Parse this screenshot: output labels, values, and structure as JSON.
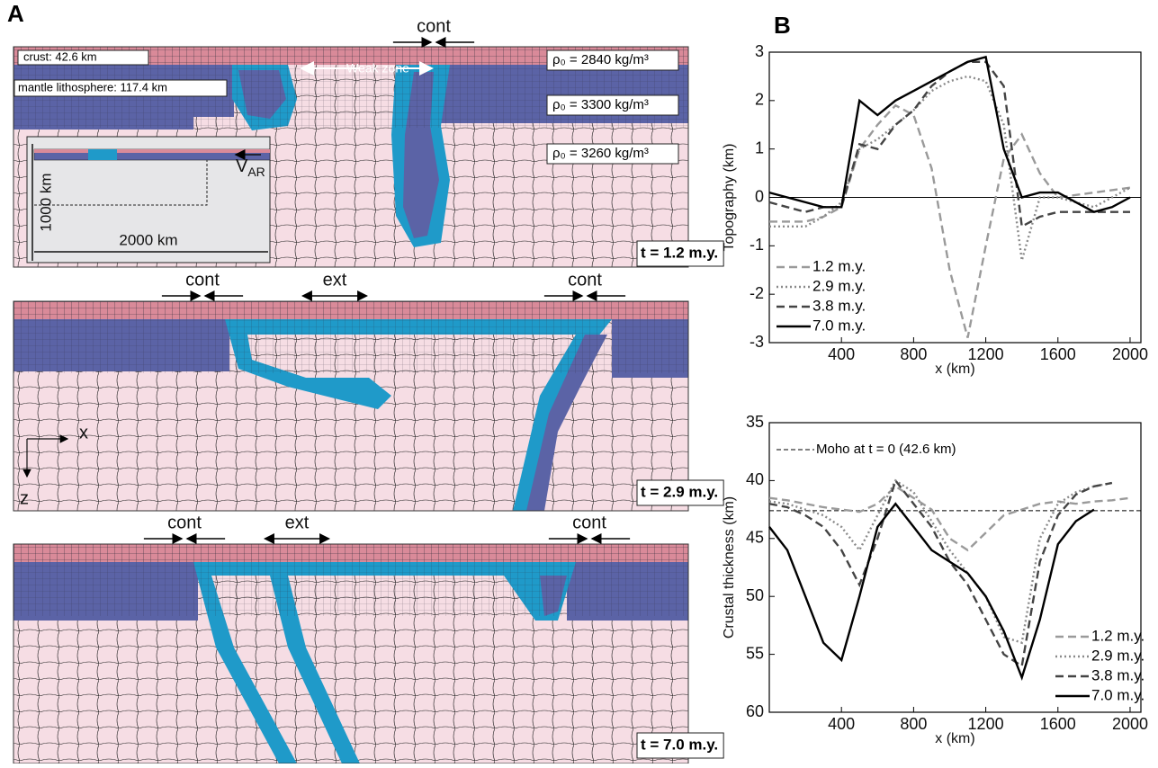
{
  "panel_a": {
    "label": "A",
    "snapshots": [
      {
        "time": "t = 1.2 m.y.",
        "arrows": [
          "cont"
        ],
        "weak_zone": "Weak zone",
        "crust": "crust:   42.6 km",
        "lithosphere": "mantle lithosphere: 117.4 km",
        "densities": [
          "ρ₀ = 2840 kg/m³",
          "ρ₀ = 3300 kg/m³",
          "ρ₀ = 3260 kg/m³"
        ],
        "inset": {
          "depth": "1000 km",
          "width": "2000 km",
          "velocity": "V",
          "velocity_sub": "AR"
        }
      },
      {
        "time": "t = 2.9 m.y.",
        "arrows": [
          "cont",
          "ext",
          "cont"
        ],
        "axes": [
          "x",
          "z"
        ]
      },
      {
        "time": "t = 7.0 m.y.",
        "arrows": [
          "cont",
          "ext",
          "cont"
        ]
      }
    ]
  },
  "panel_b_label": "B",
  "chart_data": [
    {
      "type": "line",
      "y_label": "Topography (km)",
      "x_label": "x (km)",
      "x": [
        0,
        100,
        200,
        300,
        400,
        500,
        600,
        700,
        800,
        900,
        1000,
        1100,
        1200,
        1300,
        1400,
        1500,
        1600,
        1700,
        1800,
        1900,
        2000
      ],
      "xlim": [
        0,
        2060
      ],
      "xticks": [
        400,
        800,
        1200,
        1600,
        2000
      ],
      "ylim": [
        -3,
        3
      ],
      "yticks": [
        -3,
        -2,
        -1,
        0,
        1,
        2,
        3
      ],
      "hline": 0,
      "legend": "lower left",
      "series": [
        {
          "name": "1.2 m.y.",
          "color": "#9a9a9a",
          "dash": "dashed",
          "values": [
            -0.5,
            -0.5,
            -0.5,
            -0.4,
            -0.2,
            1.0,
            1.5,
            1.9,
            1.7,
            0.6,
            -1.5,
            -2.9,
            -1.0,
            0.8,
            1.3,
            0.5,
            0.0,
            0.05,
            0.1,
            0.15,
            0.2
          ]
        },
        {
          "name": "2.9 m.y.",
          "color": "#8a8a8a",
          "dash": "dotted",
          "values": [
            -0.6,
            -0.6,
            -0.6,
            -0.4,
            -0.1,
            1.0,
            1.2,
            1.5,
            1.8,
            2.2,
            2.4,
            2.5,
            2.4,
            1.5,
            -1.3,
            0.0,
            0.0,
            -0.1,
            -0.2,
            0.0,
            0.2
          ]
        },
        {
          "name": "3.8 m.y.",
          "color": "#444444",
          "dash": "dashed",
          "values": [
            -0.1,
            -0.2,
            -0.3,
            -0.2,
            -0.2,
            1.1,
            1.0,
            1.5,
            1.8,
            2.3,
            2.6,
            2.8,
            2.8,
            2.3,
            -0.6,
            -0.4,
            -0.3,
            -0.3,
            -0.3,
            -0.3,
            -0.3
          ]
        },
        {
          "name": "7.0 m.y.",
          "color": "#000000",
          "dash": "solid",
          "values": [
            0.1,
            0.0,
            -0.1,
            -0.2,
            -0.2,
            2.0,
            1.7,
            2.0,
            2.2,
            2.4,
            2.6,
            2.8,
            2.9,
            1.0,
            0.0,
            0.1,
            0.1,
            -0.1,
            -0.3,
            -0.2,
            0.0
          ]
        }
      ]
    },
    {
      "type": "line",
      "y_label": "Crustal thickness (km)",
      "x_label": "x (km)",
      "x": [
        0,
        100,
        200,
        300,
        400,
        500,
        600,
        700,
        800,
        900,
        1000,
        1100,
        1200,
        1300,
        1400,
        1500,
        1600,
        1700,
        1800,
        1900,
        2000
      ],
      "xlim": [
        0,
        2060
      ],
      "xticks": [
        400,
        800,
        1200,
        1600,
        2000
      ],
      "ylim": [
        60,
        35
      ],
      "yticks": [
        35,
        40,
        45,
        50,
        55,
        60
      ],
      "reference_line": {
        "value": 42.6,
        "label": "Moho at t = 0 (42.6 km)"
      },
      "legend": "lower right",
      "series": [
        {
          "name": "1.2 m.y.",
          "color": "#9a9a9a",
          "dash": "dashed",
          "values": [
            41.5,
            41.7,
            42,
            42.3,
            42.5,
            42.7,
            42.0,
            40.5,
            41.5,
            42.5,
            45,
            46,
            44.5,
            43,
            42.5,
            42.0,
            41.8,
            42,
            41.8,
            41.7,
            41.5
          ]
        },
        {
          "name": "2.9 m.y.",
          "color": "#8a8a8a",
          "dash": "dotted",
          "values": [
            41.8,
            42,
            42.5,
            43,
            44,
            46,
            43,
            40,
            41,
            43.5,
            46,
            48,
            50,
            53.5,
            54,
            45,
            42,
            41,
            40.5,
            40.2,
            null
          ]
        },
        {
          "name": "3.8 m.y.",
          "color": "#444444",
          "dash": "dashed",
          "values": [
            42,
            42.3,
            43,
            44,
            46,
            49,
            45,
            40,
            42,
            44,
            47,
            49,
            52,
            55,
            56,
            47,
            43,
            41.2,
            40.5,
            40.2,
            null
          ]
        },
        {
          "name": "7.0 m.y.",
          "color": "#000000",
          "dash": "solid",
          "values": [
            44,
            46,
            50,
            54,
            55.5,
            50,
            44,
            42,
            44,
            46,
            47,
            48,
            50,
            53,
            57,
            52,
            45.5,
            43.5,
            42.5,
            null,
            null
          ]
        }
      ]
    }
  ]
}
